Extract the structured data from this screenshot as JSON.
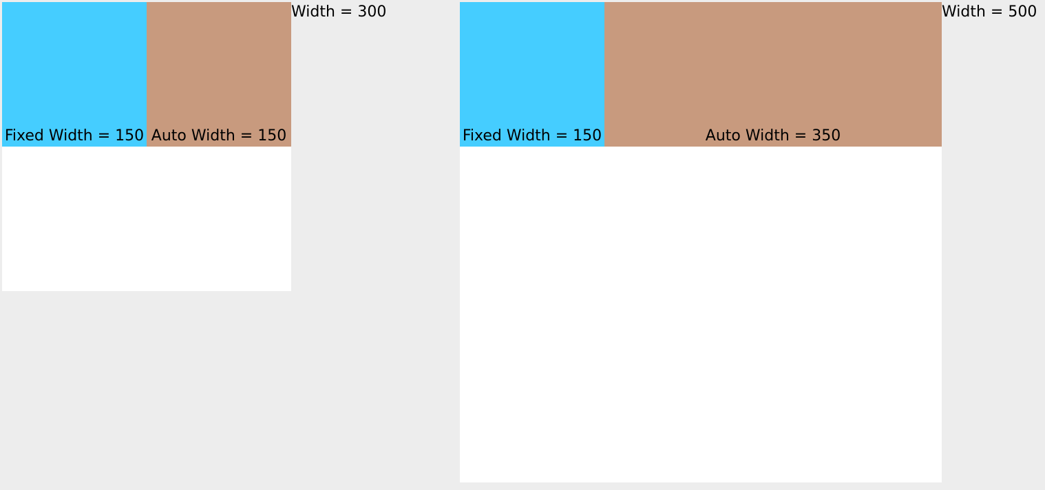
{
  "panels": [
    {
      "fixed_label": "Fixed Width = 150",
      "auto_label": "Auto Width = 150",
      "width_label": "Width = 300"
    },
    {
      "fixed_label": "Fixed Width = 150",
      "auto_label": "Auto Width = 350",
      "width_label": "Width = 500"
    }
  ],
  "colors": {
    "background": "#ededed",
    "container": "#ffffff",
    "fixed_cell": "#45cdff",
    "auto_cell": "#c89a7e"
  }
}
